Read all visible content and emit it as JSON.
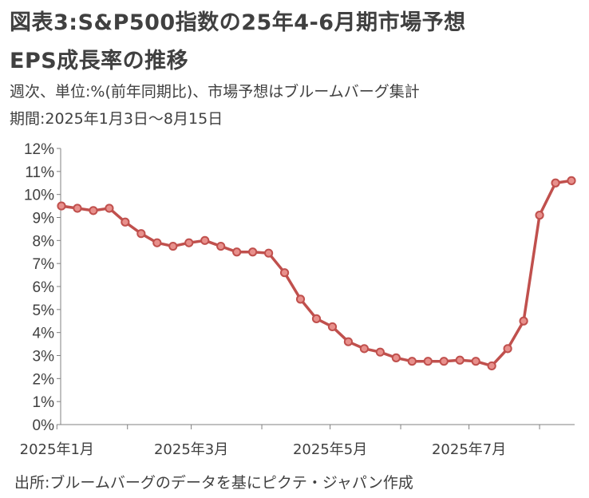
{
  "header": {
    "title_line1": "図表3:S&P500指数の25年4-6月期市場予想",
    "title_line2": "EPS成長率の推移",
    "subtitle_line1": "週次、単位:%(前年同期比)、市場予想はブルームバーグ集計",
    "subtitle_line2": "期間:2025年1月3日〜8月15日"
  },
  "footer": {
    "source": "出所:ブルームバーグのデータを基にピクテ・ジャパン作成"
  },
  "colors": {
    "line": "#c0504d",
    "marker_fill": "#e8908c",
    "axis": "#808080"
  },
  "chart_data": {
    "type": "line",
    "title": "図表3:S&P500指数の25年4-6月期市場予想 EPS成長率の推移",
    "xlabel": "",
    "ylabel": "",
    "ylim": [
      0,
      12
    ],
    "yticks": [
      "0%",
      "1%",
      "2%",
      "3%",
      "4%",
      "5%",
      "6%",
      "7%",
      "8%",
      "9%",
      "10%",
      "11%",
      "12%"
    ],
    "xticks": [
      "2025年1月",
      "2025年3月",
      "2025年5月",
      "2025年7月"
    ],
    "grid": false,
    "x": [
      "2025-01-03",
      "2025-01-10",
      "2025-01-17",
      "2025-01-24",
      "2025-01-31",
      "2025-02-07",
      "2025-02-14",
      "2025-02-21",
      "2025-02-28",
      "2025-03-07",
      "2025-03-14",
      "2025-03-21",
      "2025-03-28",
      "2025-04-04",
      "2025-04-11",
      "2025-04-18",
      "2025-04-25",
      "2025-05-02",
      "2025-05-09",
      "2025-05-16",
      "2025-05-23",
      "2025-05-30",
      "2025-06-06",
      "2025-06-13",
      "2025-06-20",
      "2025-06-27",
      "2025-07-04",
      "2025-07-11",
      "2025-07-18",
      "2025-07-25",
      "2025-08-01",
      "2025-08-08",
      "2025-08-15"
    ],
    "series": [
      {
        "values": [
          9.5,
          9.4,
          9.3,
          9.4,
          8.8,
          8.3,
          7.9,
          7.75,
          7.9,
          8.0,
          7.75,
          7.5,
          7.5,
          7.45,
          6.6,
          5.45,
          4.6,
          4.25,
          3.6,
          3.3,
          3.15,
          2.9,
          2.75,
          2.75,
          2.75,
          2.8,
          2.75,
          2.55,
          3.3,
          4.5,
          9.1,
          10.5,
          10.6
        ]
      }
    ]
  }
}
